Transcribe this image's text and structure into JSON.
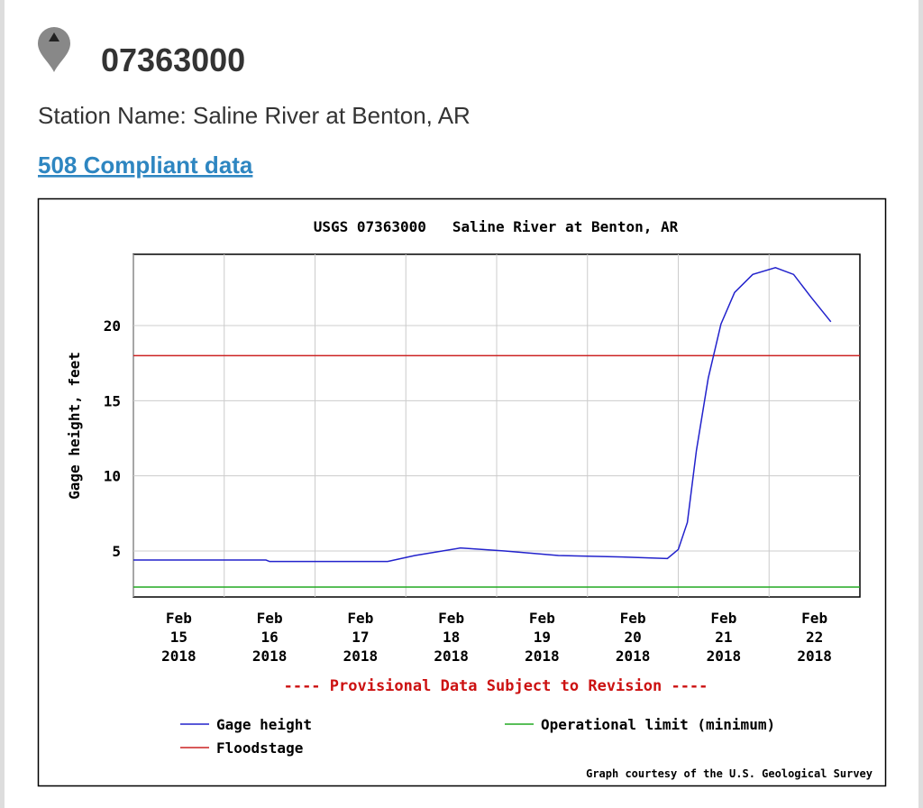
{
  "header": {
    "title": "07363000",
    "station": "Station Name: Saline River at Benton, AR",
    "link": "508 Compliant data"
  },
  "chart_data": {
    "type": "line",
    "title": "USGS 07363000   Saline River at Benton, AR",
    "y_label": "Gage height, feet",
    "annotation": "---- Provisional Data Subject to Revision ----",
    "credit": "Graph courtesy of the U.S. Geological Survey",
    "xlim": [
      15,
      23
    ],
    "xticks": [
      {
        "value": 15,
        "label": "Feb\n15\n2018"
      },
      {
        "value": 16,
        "label": "Feb\n16\n2018"
      },
      {
        "value": 17,
        "label": "Feb\n17\n2018"
      },
      {
        "value": 18,
        "label": "Feb\n18\n2018"
      },
      {
        "value": 19,
        "label": "Feb\n19\n2018"
      },
      {
        "value": 20,
        "label": "Feb\n20\n2018"
      },
      {
        "value": 21,
        "label": "Feb\n21\n2018"
      },
      {
        "value": 22,
        "label": "Feb\n22\n2018"
      }
    ],
    "ylim": [
      1.94,
      24.74
    ],
    "yticks": [
      5,
      10,
      15,
      20
    ],
    "grid": true,
    "series": [
      {
        "name": "Gage height",
        "color": "#2222cc",
        "x": [
          15,
          16.46,
          16.5,
          17.8,
          18.1,
          18.6,
          19.09,
          19.68,
          20.38,
          20.88,
          21.0,
          21.1,
          21.2,
          21.33,
          21.47,
          21.62,
          21.82,
          22.07,
          22.27,
          22.46,
          22.68
        ],
        "values": [
          4.4,
          4.4,
          4.3,
          4.3,
          4.7,
          5.2,
          5.0,
          4.7,
          4.6,
          4.5,
          5.1,
          6.9,
          11.7,
          16.5,
          20.1,
          22.2,
          23.4,
          23.85,
          23.4,
          21.9,
          20.25
        ]
      }
    ],
    "reference_lines": [
      {
        "name": "Floodstage",
        "color": "#cc2222",
        "value": 18
      },
      {
        "name": "Operational limit (minimum)",
        "color": "#22aa22",
        "value": 2.6
      }
    ]
  }
}
